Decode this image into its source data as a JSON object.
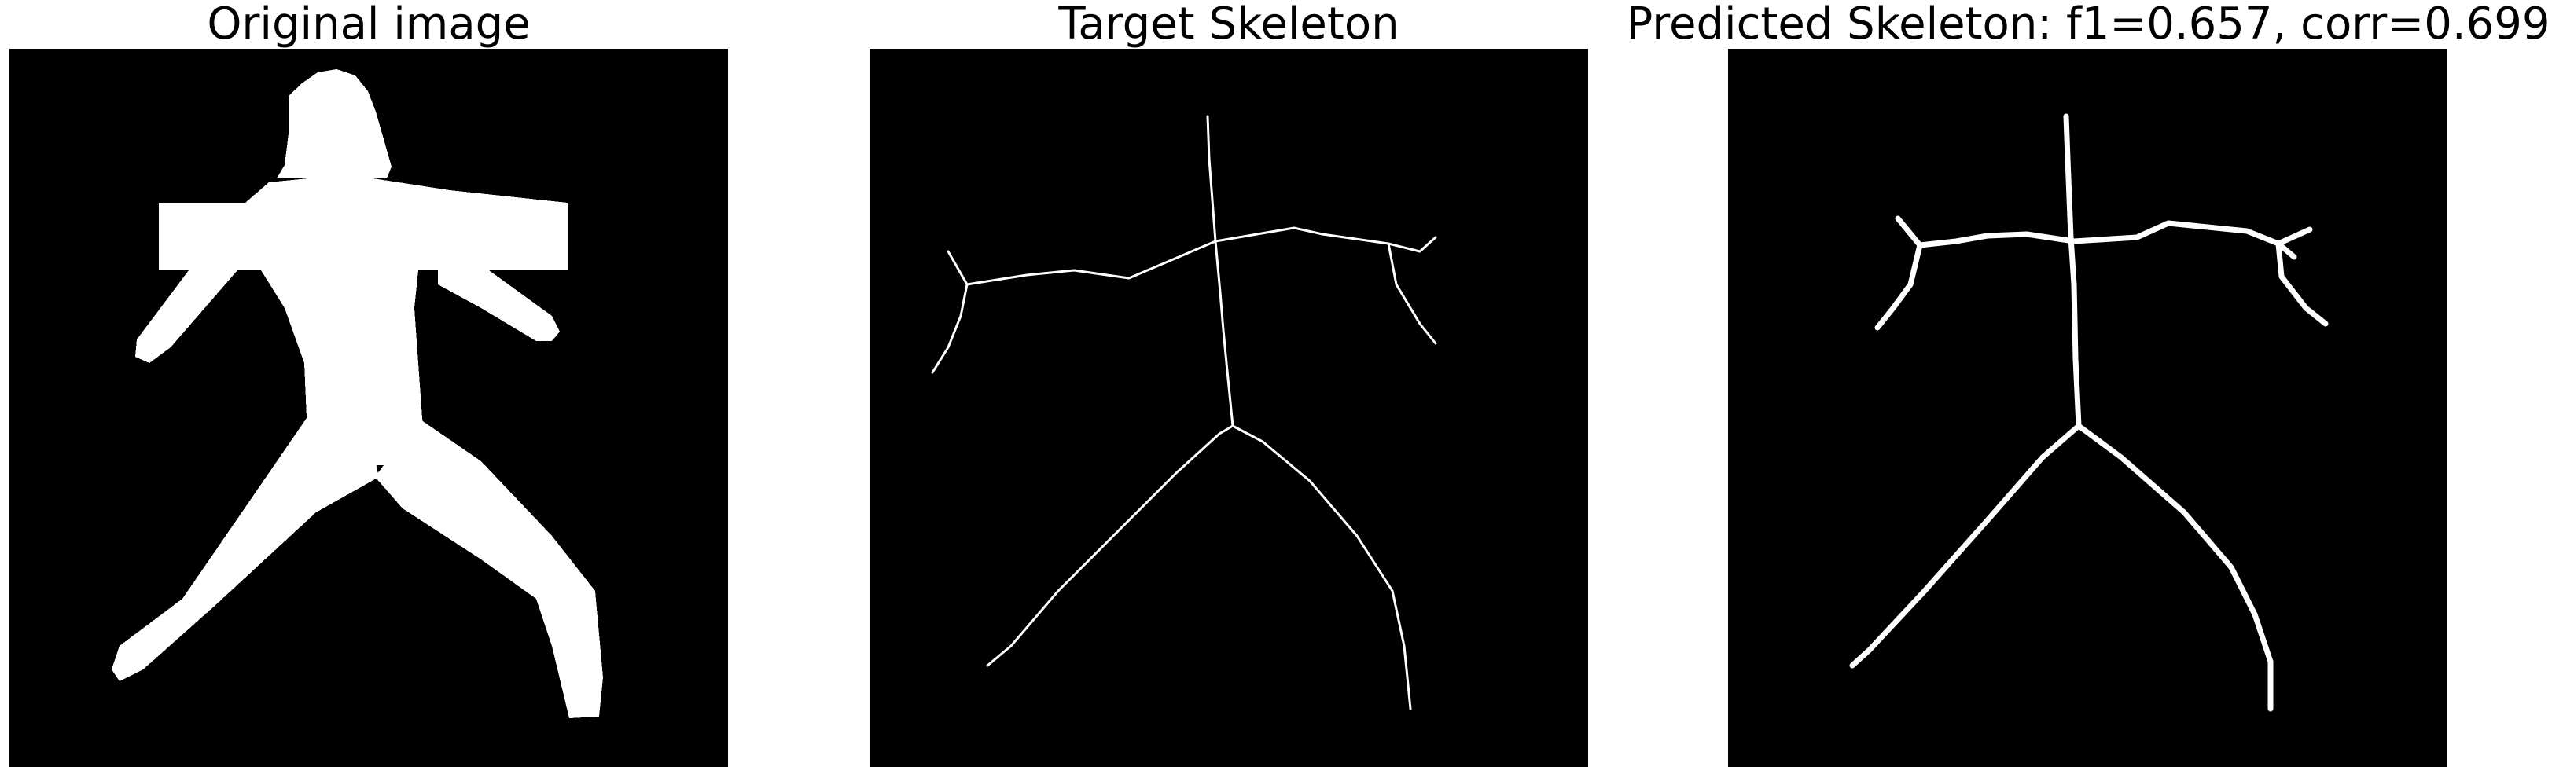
{
  "panels": [
    {
      "title": "Original image"
    },
    {
      "title": "Target Skeleton"
    },
    {
      "title": "Predicted Skeleton: f1=0.657, corr=0.699"
    }
  ],
  "colors": {
    "background": "#000000",
    "foreground": "#ffffff"
  }
}
